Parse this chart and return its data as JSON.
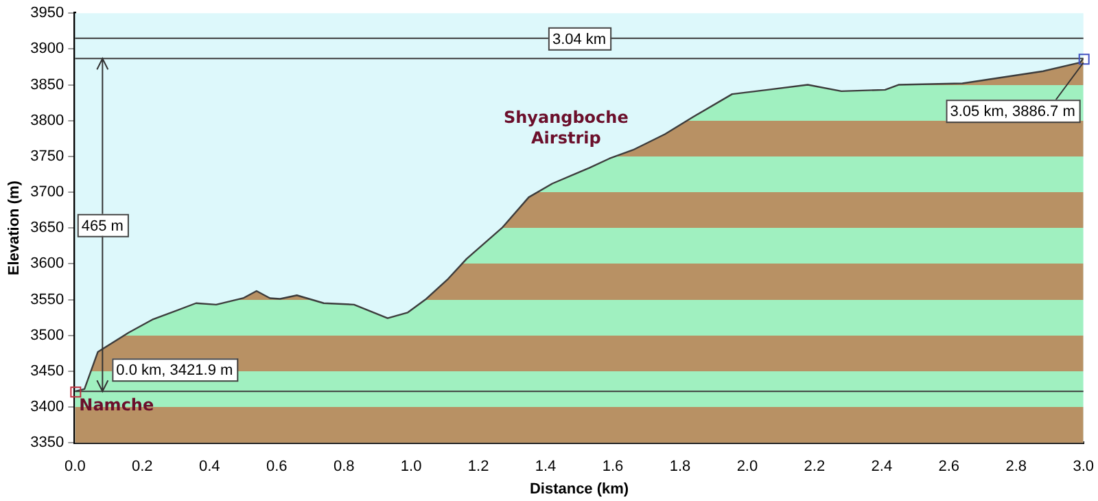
{
  "chart_data": {
    "type": "area",
    "xlabel": "Distance (km)",
    "ylabel": "Elevation (m)",
    "x": [
      0,
      0.028,
      0.068,
      0.16,
      0.23,
      0.36,
      0.42,
      0.5,
      0.54,
      0.58,
      0.61,
      0.66,
      0.74,
      0.83,
      0.93,
      0.99,
      1.045,
      1.11,
      1.165,
      1.27,
      1.35,
      1.42,
      1.53,
      1.59,
      1.66,
      1.755,
      1.835,
      1.955,
      2.06,
      2.18,
      2.28,
      2.41,
      2.45,
      2.64,
      2.88,
      2.99,
      3.0
    ],
    "series": [
      {
        "color": "#3c3c3c",
        "values": [
          3421.9,
          3425,
          3477,
          3504,
          3522,
          3545,
          3543,
          3552,
          3562,
          3552,
          3551,
          3556,
          3545,
          3543,
          3524,
          3532,
          3551,
          3579,
          3607,
          3650,
          3693,
          3712,
          3734,
          3747,
          3759,
          3781,
          3804,
          3837,
          3843,
          3850,
          3841,
          3843,
          3850,
          3852,
          3869,
          3881,
          3886.7
        ]
      }
    ],
    "xlim": [
      0,
      3.0
    ],
    "ylim": [
      3350,
      3950
    ],
    "xticks": [
      {
        "value": 0,
        "label": "0.0"
      },
      0.2,
      0.4,
      0.6,
      0.8,
      {
        "value": 1,
        "label": "1.0"
      },
      1.2,
      1.4,
      1.6,
      1.8,
      {
        "value": 2,
        "label": "2.0"
      },
      2.2,
      2.4,
      2.6,
      2.8,
      {
        "value": 3,
        "label": "3.0"
      }
    ],
    "yticks": [
      3350,
      3400,
      3450,
      3500,
      3550,
      3600,
      3650,
      3700,
      3750,
      3800,
      3850,
      3900,
      3950
    ],
    "grid": false,
    "legend": false,
    "marker": "none",
    "ref_lines": [
      {
        "axis": "y",
        "value": 3421.9,
        "color": "#3c3c3c"
      },
      {
        "axis": "y",
        "value": 3886.7,
        "color": "#3c3c3c"
      },
      {
        "axis": "y",
        "value": 3915,
        "color": "#3c3c3c",
        "label": "3.04 km"
      }
    ],
    "annotations": [
      {
        "text": "Namche",
        "x": 0,
        "y": 3421.9
      },
      {
        "text": "0.0 km, 3421.9 m",
        "x": 0,
        "y": 3421.9
      },
      {
        "text": "Shyangboche Airstrip",
        "x": 1.42,
        "y": 3712
      },
      {
        "text": "3.05 km, 3886.7 m",
        "x": 3.0,
        "y": 3886.7
      },
      "465 m"
    ]
  }
}
